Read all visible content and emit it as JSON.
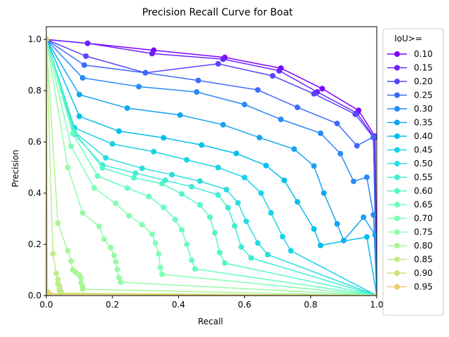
{
  "chart_data": {
    "type": "line",
    "title": "Precision Recall Curve for Boat",
    "xlabel": "Recall",
    "ylabel": "Precision",
    "xlim": [
      0,
      1
    ],
    "ylim": [
      0,
      1.05
    ],
    "x_ticks": [
      "0.0",
      "0.2",
      "0.4",
      "0.6",
      "0.8",
      "1.0"
    ],
    "y_ticks": [
      "0.0",
      "0.2",
      "0.4",
      "0.6",
      "0.8",
      "1.0"
    ],
    "grid": false,
    "legend": {
      "title": "IoU>=",
      "placement": "right"
    },
    "series": [
      {
        "name": "0.10",
        "color": "#8000ff",
        "x": [
          0.0,
          0.125,
          0.325,
          0.54,
          0.71,
          0.835,
          0.945,
          0.995,
          1.0
        ],
        "y": [
          1.0,
          0.985,
          0.958,
          0.93,
          0.888,
          0.808,
          0.723,
          0.622,
          0.0
        ]
      },
      {
        "name": "0.15",
        "color": "#6a23fe",
        "x": [
          0.0,
          0.125,
          0.32,
          0.535,
          0.705,
          0.82,
          0.94,
          0.993,
          1.0
        ],
        "y": [
          1.0,
          0.985,
          0.945,
          0.923,
          0.878,
          0.795,
          0.713,
          0.617,
          0.0
        ]
      },
      {
        "name": "0.20",
        "color": "#5546fc",
        "x": [
          0.0,
          0.12,
          0.3,
          0.52,
          0.685,
          0.81,
          0.935,
          0.99,
          1.0
        ],
        "y": [
          1.0,
          0.935,
          0.87,
          0.905,
          0.858,
          0.788,
          0.708,
          0.617,
          0.0
        ]
      },
      {
        "name": "0.25",
        "color": "#3f69fa",
        "x": [
          0.0,
          0.115,
          0.3,
          0.46,
          0.64,
          0.76,
          0.88,
          0.94,
          0.99,
          1.0
        ],
        "y": [
          1.0,
          0.9,
          0.87,
          0.84,
          0.803,
          0.735,
          0.672,
          0.585,
          0.62,
          0.0
        ]
      },
      {
        "name": "0.30",
        "color": "#2a8af6",
        "x": [
          0.0,
          0.11,
          0.28,
          0.455,
          0.6,
          0.71,
          0.83,
          0.89,
          0.93,
          0.97,
          0.99,
          1.0
        ],
        "y": [
          1.0,
          0.85,
          0.816,
          0.795,
          0.746,
          0.688,
          0.634,
          0.554,
          0.446,
          0.462,
          0.315,
          0.0
        ]
      },
      {
        "name": "0.35",
        "color": "#15a4f1",
        "x": [
          0.0,
          0.1,
          0.245,
          0.405,
          0.535,
          0.645,
          0.75,
          0.81,
          0.84,
          0.88,
          0.9,
          0.96,
          0.995,
          1.0
        ],
        "y": [
          1.0,
          0.785,
          0.732,
          0.705,
          0.667,
          0.617,
          0.572,
          0.506,
          0.4,
          0.28,
          0.215,
          0.306,
          0.237,
          0.0
        ]
      },
      {
        "name": "0.40",
        "color": "#00bfec",
        "x": [
          0.0,
          0.1,
          0.22,
          0.355,
          0.47,
          0.575,
          0.665,
          0.72,
          0.76,
          0.81,
          0.83,
          0.97,
          1.0
        ],
        "y": [
          1.0,
          0.7,
          0.642,
          0.616,
          0.588,
          0.555,
          0.508,
          0.45,
          0.366,
          0.26,
          0.196,
          0.229,
          0.0
        ]
      },
      {
        "name": "0.45",
        "color": "#16d4e6",
        "x": [
          0.0,
          0.085,
          0.2,
          0.325,
          0.425,
          0.52,
          0.6,
          0.65,
          0.68,
          0.715,
          0.74,
          1.0
        ],
        "y": [
          1.0,
          0.655,
          0.592,
          0.562,
          0.53,
          0.5,
          0.461,
          0.4,
          0.323,
          0.23,
          0.175,
          0.0
        ]
      },
      {
        "name": "0.50",
        "color": "#2adddd",
        "x": [
          0.0,
          0.085,
          0.18,
          0.29,
          0.38,
          0.465,
          0.545,
          0.58,
          0.605,
          0.64,
          0.67,
          1.0
        ],
        "y": [
          1.0,
          0.64,
          0.538,
          0.497,
          0.472,
          0.447,
          0.414,
          0.362,
          0.29,
          0.205,
          0.16,
          0.0
        ]
      },
      {
        "name": "0.55",
        "color": "#40ecd4",
        "x": [
          0.0,
          0.085,
          0.17,
          0.27,
          0.36,
          0.44,
          0.52,
          0.55,
          0.57,
          0.59,
          0.62,
          1.0
        ],
        "y": [
          1.0,
          0.63,
          0.51,
          0.478,
          0.45,
          0.425,
          0.393,
          0.343,
          0.272,
          0.19,
          0.147,
          0.0
        ]
      },
      {
        "name": "0.60",
        "color": "#55f6ca",
        "x": [
          0.0,
          0.085,
          0.17,
          0.265,
          0.35,
          0.41,
          0.465,
          0.495,
          0.51,
          0.525,
          0.54,
          1.0
        ],
        "y": [
          1.0,
          0.64,
          0.498,
          0.46,
          0.437,
          0.397,
          0.354,
          0.306,
          0.245,
          0.168,
          0.127,
          0.0
        ]
      },
      {
        "name": "0.65",
        "color": "#6afcbd",
        "x": [
          0.0,
          0.08,
          0.155,
          0.245,
          0.31,
          0.355,
          0.39,
          0.41,
          0.425,
          0.44,
          0.45,
          1.0
        ],
        "y": [
          1.0,
          0.633,
          0.467,
          0.42,
          0.387,
          0.344,
          0.297,
          0.257,
          0.2,
          0.138,
          0.104,
          0.0
        ]
      },
      {
        "name": "0.70",
        "color": "#80ffb4",
        "x": [
          0.0,
          0.075,
          0.145,
          0.21,
          0.25,
          0.29,
          0.32,
          0.33,
          0.34,
          0.345,
          0.35,
          1.0
        ],
        "y": [
          1.0,
          0.583,
          0.42,
          0.36,
          0.312,
          0.277,
          0.24,
          0.205,
          0.163,
          0.11,
          0.083,
          0.0
        ]
      },
      {
        "name": "0.75",
        "color": "#95fba6",
        "x": [
          0.0,
          0.065,
          0.11,
          0.16,
          0.175,
          0.195,
          0.205,
          0.21,
          0.215,
          0.22,
          0.225,
          1.0
        ],
        "y": [
          1.0,
          0.5,
          0.323,
          0.27,
          0.22,
          0.187,
          0.157,
          0.132,
          0.102,
          0.07,
          0.052,
          0.0
        ]
      },
      {
        "name": "0.80",
        "color": "#aaf597",
        "x": [
          0.0,
          0.035,
          0.065,
          0.075,
          0.08,
          0.09,
          0.1,
          0.105,
          0.105,
          0.11,
          0.11,
          1.0
        ],
        "y": [
          1.0,
          0.283,
          0.175,
          0.135,
          0.1,
          0.09,
          0.08,
          0.07,
          0.05,
          0.035,
          0.025,
          0.0
        ]
      },
      {
        "name": "0.85",
        "color": "#bfec89",
        "x": [
          0.0,
          0.02,
          0.03,
          0.035,
          0.035,
          0.04,
          0.04,
          0.04,
          0.045,
          0.045,
          1.0
        ],
        "y": [
          1.0,
          0.163,
          0.087,
          0.063,
          0.045,
          0.038,
          0.03,
          0.02,
          0.015,
          0.01,
          0.0
        ]
      },
      {
        "name": "0.90",
        "color": "#d5dd7a",
        "x": [
          0.0,
          0.003,
          0.005,
          0.008,
          0.01,
          1.0
        ],
        "y": [
          1.0,
          0.015,
          0.013,
          0.01,
          0.008,
          0.0
        ]
      },
      {
        "name": "0.95",
        "color": "#eace6b",
        "x": [
          0.0,
          0.001,
          1.0
        ],
        "y": [
          1.0,
          0.005,
          0.0
        ]
      }
    ]
  }
}
